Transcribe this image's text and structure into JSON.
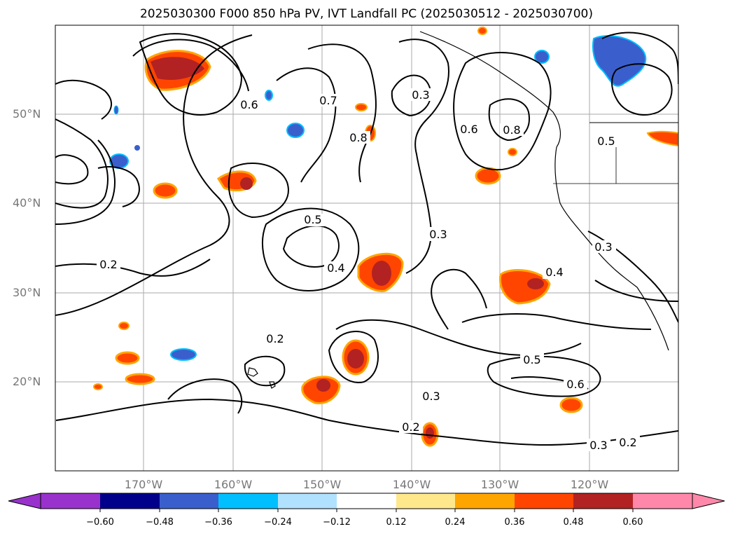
{
  "title": "2025030300 F000 850 hPa PV, IVT Landfall PC (2025030512 - 2025030700)",
  "lat_labels": [
    "50°N",
    "40°N",
    "30°N",
    "20°N"
  ],
  "lon_labels": [
    "170°W",
    "160°W",
    "150°W",
    "140°W",
    "130°W",
    "120°W"
  ],
  "contour_labels": [
    "0.2",
    "0.2",
    "0.2",
    "0.2",
    "0.3",
    "0.3",
    "0.3",
    "0.3",
    "0.4",
    "0.4",
    "0.5",
    "0.5",
    "0.5",
    "0.6",
    "0.6",
    "0.8",
    "0.8",
    "0.7",
    "0.3",
    "0.6"
  ],
  "colorbar": {
    "ticks": [
      "−0.60",
      "−0.48",
      "−0.36",
      "−0.24",
      "−0.12",
      "0.12",
      "0.24",
      "0.36",
      "0.48",
      "0.60"
    ],
    "colors": [
      "#9932cc",
      "#00008b",
      "#3a5fcd",
      "#00bfff",
      "#b0e2ff",
      "#ffffff",
      "#ffe88c",
      "#ffa500",
      "#ff4500",
      "#b22222",
      "#ff88aa"
    ]
  }
}
